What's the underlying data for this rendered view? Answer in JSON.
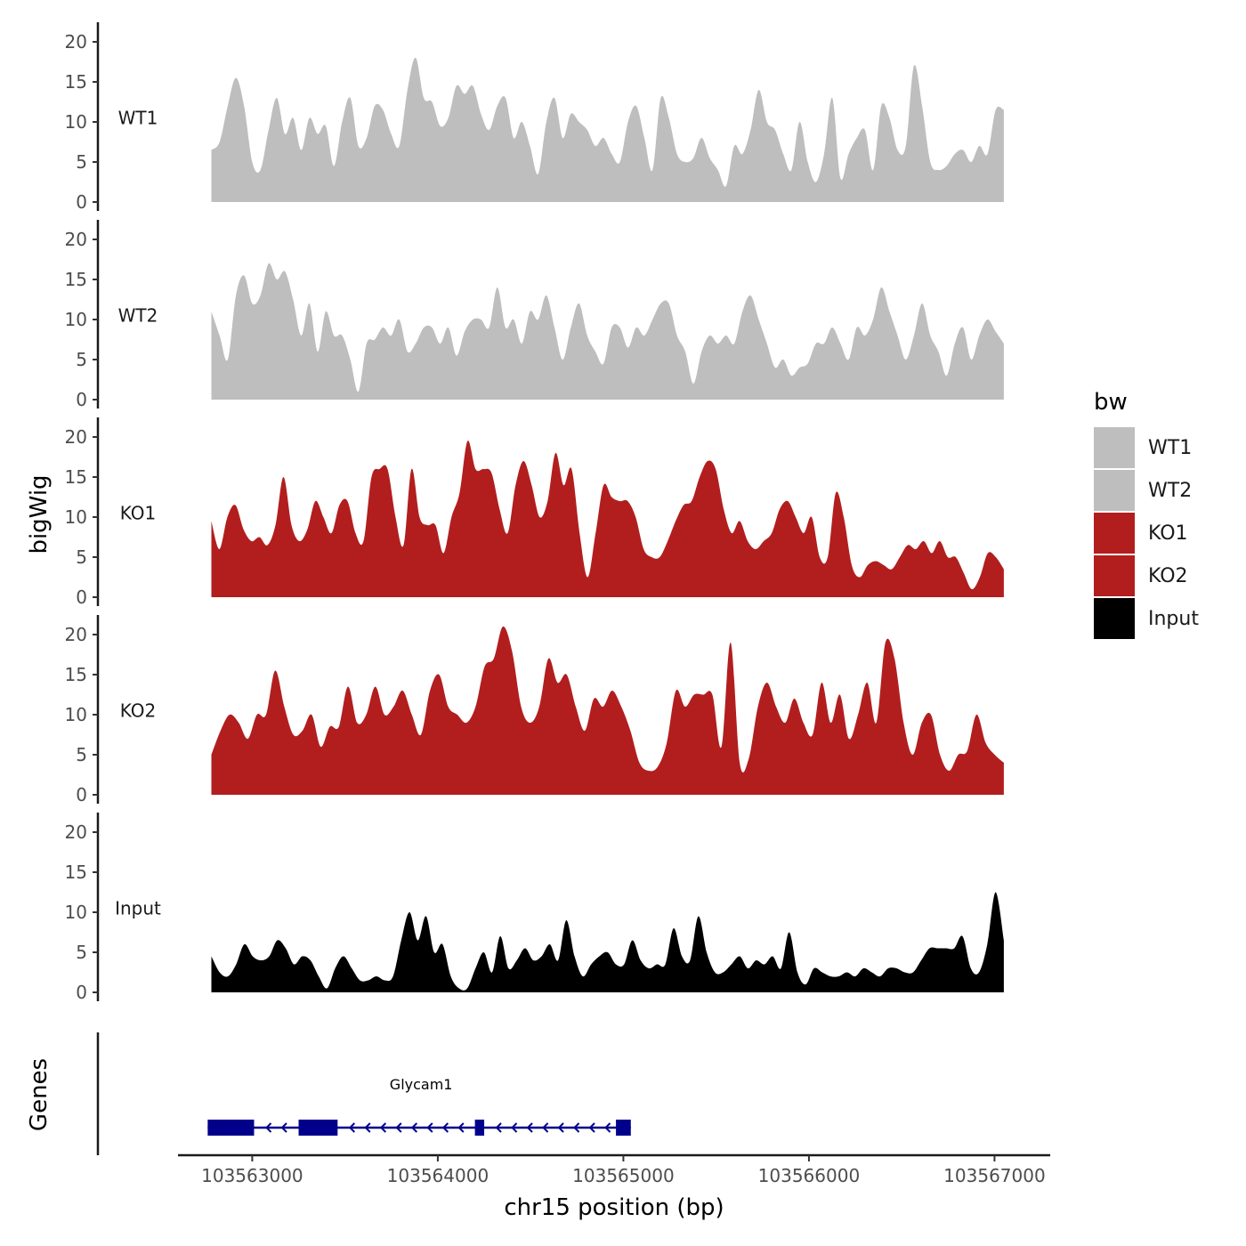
{
  "chart_data": {
    "type": "area",
    "ylabel": "bigWig",
    "genes_label": "Genes",
    "xlabel": "chr15 position (bp)",
    "xlim": [
      103562600,
      103567300
    ],
    "xticks": [
      103563000,
      103564000,
      103565000,
      103566000,
      103567000
    ],
    "xtick_labels": [
      "103563000",
      "103564000",
      "103565000",
      "103566000",
      "103567000"
    ],
    "ylim": [
      0,
      22
    ],
    "yticks": [
      0,
      5,
      10,
      15,
      20
    ],
    "ytick_labels": [
      "0",
      "5",
      "10",
      "15",
      "20"
    ],
    "legend": {
      "title": "bw",
      "position": "right",
      "entries": [
        {
          "label": "WT1",
          "color": "#bebebe"
        },
        {
          "label": "WT2",
          "color": "#bebebe"
        },
        {
          "label": "KO1",
          "color": "#b21e1e"
        },
        {
          "label": "KO2",
          "color": "#b21e1e"
        },
        {
          "label": "Input",
          "color": "#000000"
        }
      ]
    },
    "series": [
      {
        "name": "WT1",
        "color": "#bebebe",
        "x_start": 103562780,
        "x_end": 103567050,
        "values": [
          6.5,
          7.5,
          12,
          15.5,
          12,
          5,
          4,
          9,
          13,
          8.5,
          10.5,
          6.5,
          10.5,
          8.5,
          9.5,
          4.5,
          10,
          13,
          7,
          8,
          12,
          11.5,
          8.5,
          7,
          14,
          18,
          13,
          12.5,
          9.5,
          10.5,
          14.5,
          13.5,
          14.5,
          11,
          9,
          12,
          13,
          8,
          10,
          7,
          3.5,
          10,
          13,
          8,
          11,
          10,
          9,
          7,
          8,
          6,
          5,
          10,
          12,
          8,
          4,
          13,
          10.5,
          6,
          5,
          5.5,
          8,
          5.5,
          4,
          2,
          7,
          6,
          9,
          14,
          10,
          9,
          6,
          4,
          10,
          5,
          2.5,
          6,
          13,
          3,
          6,
          8,
          9,
          4,
          12,
          10.5,
          6.5,
          7,
          17,
          12,
          5,
          4,
          4.5,
          6,
          6.5,
          5,
          7,
          6,
          11.5,
          11.5
        ]
      },
      {
        "name": "WT2",
        "color": "#bebebe",
        "x_start": 103562780,
        "x_end": 103567050,
        "values": [
          11,
          8,
          5,
          13,
          15.5,
          12,
          13,
          17,
          15,
          16,
          12.5,
          8,
          12,
          6,
          11,
          8,
          8,
          5,
          1,
          7,
          7.5,
          9,
          8,
          10,
          6,
          7,
          9,
          9,
          7,
          9,
          5.5,
          8.5,
          10,
          10,
          9,
          14,
          9,
          10,
          7,
          11,
          10,
          13,
          9,
          5,
          9,
          12,
          8,
          6,
          4.5,
          9,
          9,
          6.5,
          9,
          8,
          10,
          12,
          12,
          8,
          6,
          2,
          6,
          8,
          7,
          8,
          7,
          11,
          13,
          10,
          7,
          4,
          5,
          3,
          4,
          4.5,
          7,
          7,
          9,
          7,
          5,
          9,
          8,
          10,
          14,
          11,
          8,
          5,
          8,
          12,
          8,
          6,
          3,
          7,
          9,
          5,
          8,
          10,
          8.5,
          7
        ]
      },
      {
        "name": "KO1",
        "color": "#b21e1e",
        "x_start": 103562780,
        "x_end": 103567050,
        "values": [
          9.5,
          6,
          10,
          11.5,
          8.5,
          7,
          7.5,
          6.5,
          9,
          15,
          9,
          7,
          8.5,
          12,
          10,
          8,
          11.5,
          12,
          8,
          7,
          15,
          16,
          16,
          10,
          6.5,
          16,
          10,
          9,
          9,
          5.5,
          10,
          13,
          19.5,
          16,
          16,
          15.5,
          11,
          8,
          14,
          17,
          14,
          10,
          12,
          18,
          14,
          16,
          8,
          2.5,
          8,
          14,
          12.5,
          12,
          12,
          10,
          6,
          5,
          5,
          7,
          9.5,
          11.5,
          12,
          15,
          17,
          16,
          11,
          8,
          9.5,
          7,
          6,
          7,
          8,
          11,
          12,
          10,
          8,
          10,
          5,
          5,
          13,
          10,
          4,
          2.5,
          4,
          4.5,
          4,
          3.5,
          5,
          6.5,
          6,
          7,
          5.5,
          7,
          5,
          5,
          3,
          1,
          2.5,
          5.5,
          5,
          3.5
        ]
      },
      {
        "name": "KO2",
        "color": "#b21e1e",
        "x_start": 103562780,
        "x_end": 103567050,
        "values": [
          5,
          8,
          10,
          9,
          7,
          10,
          10,
          15.5,
          11,
          7.5,
          8,
          10,
          6,
          8.5,
          8.5,
          13.5,
          9,
          10,
          13.5,
          10,
          11,
          13,
          10,
          7.5,
          13,
          15,
          11,
          10,
          9,
          11,
          16,
          17,
          21,
          18,
          11,
          9,
          11,
          17,
          14,
          15,
          11,
          8,
          12,
          11,
          13,
          11,
          8,
          4,
          3,
          3.5,
          6.5,
          13,
          11,
          12.5,
          12.5,
          12.5,
          6,
          19,
          4,
          4.5,
          11,
          14,
          11,
          9,
          12,
          9,
          7.5,
          14,
          9,
          12.5,
          7,
          10,
          14,
          9,
          19,
          17,
          9,
          5,
          9,
          10,
          5,
          3,
          5,
          5.5,
          10,
          6.5,
          5,
          4
        ]
      },
      {
        "name": "Input",
        "color": "#000000",
        "x_start": 103562780,
        "x_end": 103567050,
        "values": [
          4.5,
          2.5,
          2,
          3.5,
          6,
          4.5,
          4,
          4.5,
          6.5,
          5.5,
          3.5,
          4.5,
          4,
          2,
          0.5,
          3,
          4.5,
          3,
          1.5,
          1.5,
          2,
          1.5,
          2,
          6.5,
          10,
          6.5,
          9.5,
          5,
          6,
          2,
          0.5,
          0.5,
          3,
          5,
          2.5,
          7,
          3,
          4,
          5.5,
          4,
          4.5,
          6,
          4,
          9,
          4.5,
          2,
          3.5,
          4.5,
          5,
          3.5,
          3.5,
          6.5,
          4,
          3,
          3.5,
          3.5,
          8,
          4.5,
          4,
          9.5,
          5,
          2.5,
          2.5,
          3.5,
          4.5,
          3,
          4,
          3.5,
          4.5,
          3,
          7.5,
          2.5,
          1,
          3,
          2.5,
          2,
          2,
          2.5,
          2,
          3,
          2.5,
          2,
          3,
          3,
          2.5,
          2.5,
          4,
          5.5,
          5.5,
          5.5,
          5.5,
          7,
          3,
          2.5,
          6,
          12.5,
          6.5
        ]
      }
    ],
    "gene": {
      "name": "Glycam1",
      "color": "#00008b",
      "strand": "-",
      "start": 103562760,
      "end": 103565040,
      "exons": [
        [
          103562760,
          103563010
        ],
        [
          103563250,
          103563460
        ],
        [
          103564200,
          103564250
        ],
        [
          103564960,
          103565040
        ]
      ]
    }
  }
}
